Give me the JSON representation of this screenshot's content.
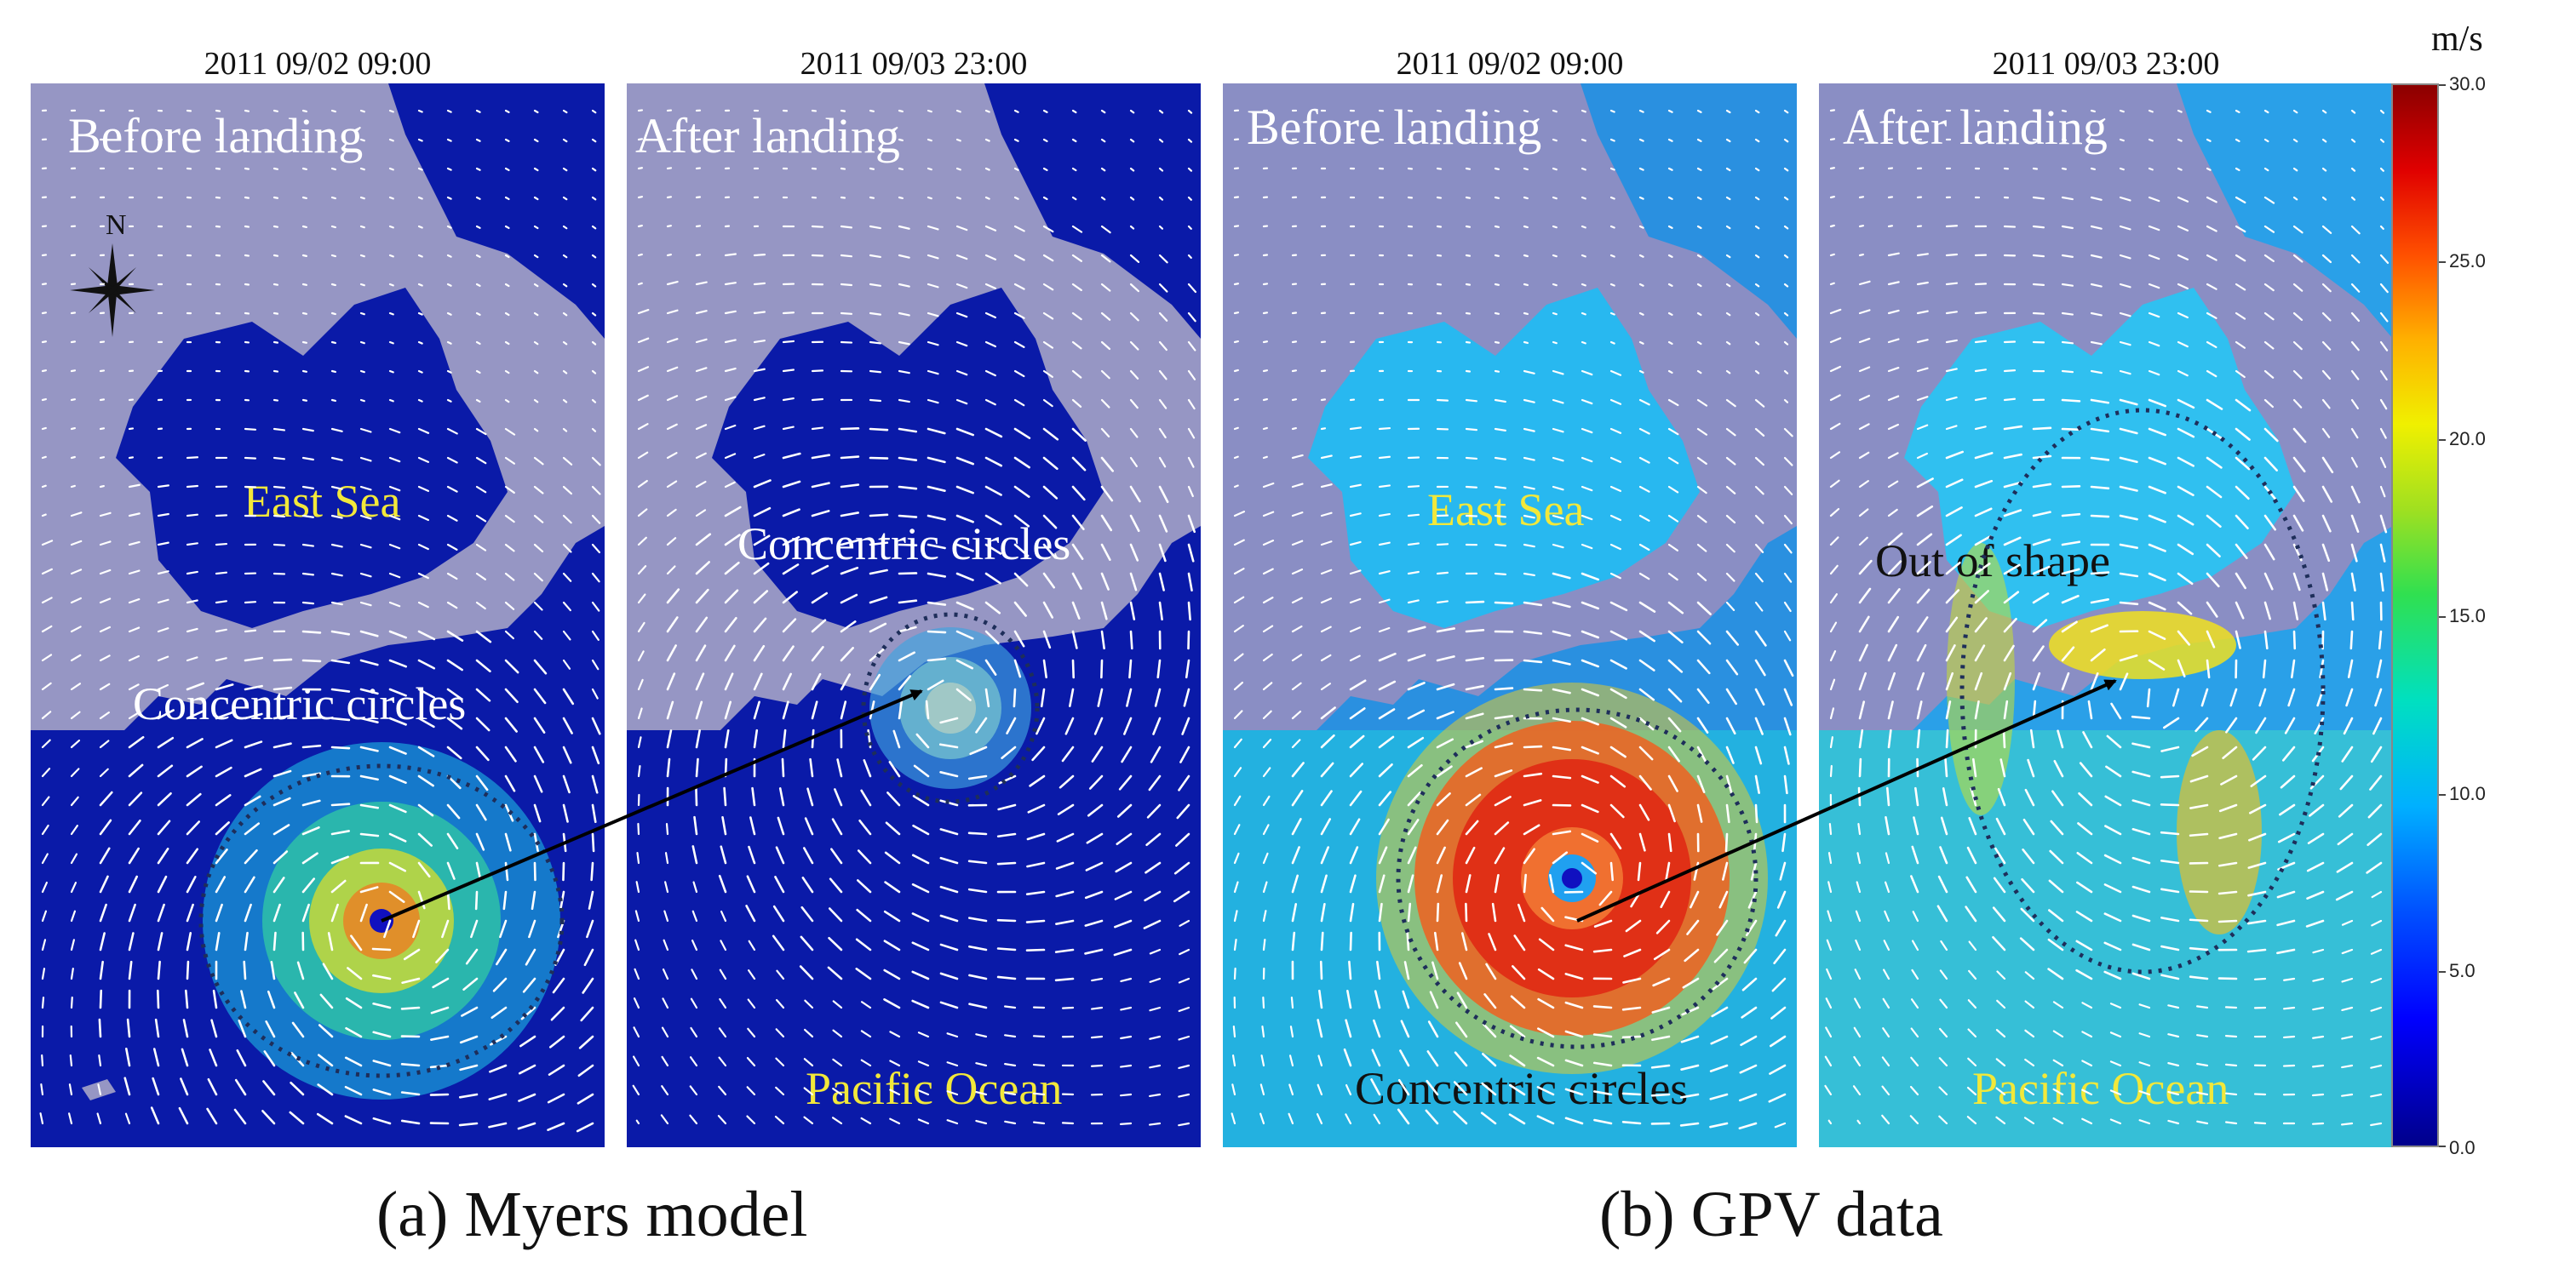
{
  "panels": [
    {
      "time": "2011 09/02 09:00",
      "stage": "Before landing",
      "labels": {
        "sea": "East Sea",
        "circles": "Concentric circles"
      }
    },
    {
      "time": "2011 09/03 23:00",
      "stage": "After landing",
      "labels": {
        "circles": "Concentric circles",
        "ocean": "Pacific Ocean"
      }
    },
    {
      "time": "2011 09/02 09:00",
      "stage": "Before landing",
      "labels": {
        "sea": "East Sea",
        "circles": "Concentric circles"
      }
    },
    {
      "time": "2011 09/03 23:00",
      "stage": "After landing",
      "labels": {
        "shape": "Out of shape",
        "ocean": "Pacific Ocean"
      }
    }
  ],
  "compass": {
    "label": "N"
  },
  "captions": {
    "a": "(a) Myers model",
    "b": "(b) GPV data"
  },
  "colorbar": {
    "unit": "m/s",
    "ticks": [
      "30.0",
      "25.0",
      "20.0",
      "15.0",
      "10.0",
      "5.0",
      "0.0"
    ],
    "colors": {
      "land": "#9696c4",
      "ocean_calm": "#0a1aa8",
      "high_wind": "#e02010",
      "arrow": "#ffffff",
      "dotted_ellipse": "#1e2e5a"
    }
  }
}
